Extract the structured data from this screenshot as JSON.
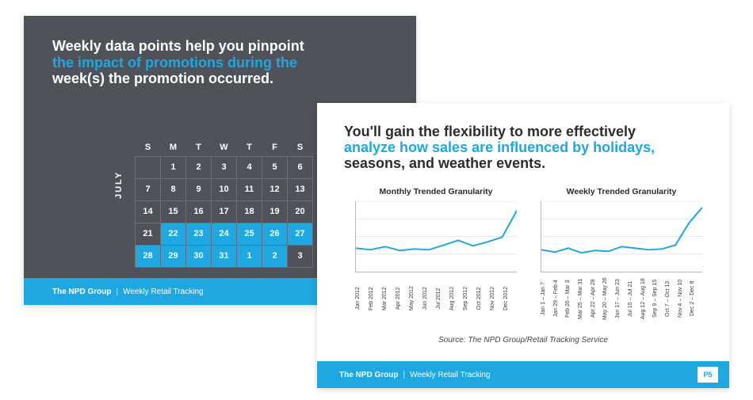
{
  "colors": {
    "slide1_bg": "#4f5258",
    "accent": "#1ea7e1",
    "white": "#ffffff",
    "text_dark": "#2b2c2e",
    "grid_border": "#6a6d72",
    "chart_grid": "#e6e6e6",
    "chart_axis": "#b8b8b8"
  },
  "slide1": {
    "head_line1": "Weekly data points help you pinpoint",
    "head_line2_accent": "the impact of promotions during the",
    "head_line3": "week(s) the promotion occurred.",
    "month_label": "JULY",
    "day_headers": [
      "S",
      "M",
      "T",
      "W",
      "T",
      "F",
      "S"
    ],
    "rows": [
      [
        {
          "n": "",
          "hl": false
        },
        {
          "n": "1",
          "hl": false
        },
        {
          "n": "2",
          "hl": false
        },
        {
          "n": "3",
          "hl": false
        },
        {
          "n": "4",
          "hl": false
        },
        {
          "n": "5",
          "hl": false
        },
        {
          "n": "6",
          "hl": false
        }
      ],
      [
        {
          "n": "7",
          "hl": false
        },
        {
          "n": "8",
          "hl": false
        },
        {
          "n": "9",
          "hl": false
        },
        {
          "n": "10",
          "hl": false
        },
        {
          "n": "11",
          "hl": false
        },
        {
          "n": "12",
          "hl": false
        },
        {
          "n": "13",
          "hl": false
        }
      ],
      [
        {
          "n": "14",
          "hl": false
        },
        {
          "n": "15",
          "hl": false
        },
        {
          "n": "16",
          "hl": false
        },
        {
          "n": "17",
          "hl": false
        },
        {
          "n": "18",
          "hl": false
        },
        {
          "n": "19",
          "hl": false
        },
        {
          "n": "20",
          "hl": false
        }
      ],
      [
        {
          "n": "21",
          "hl": false
        },
        {
          "n": "22",
          "hl": true
        },
        {
          "n": "23",
          "hl": true
        },
        {
          "n": "24",
          "hl": true
        },
        {
          "n": "25",
          "hl": true
        },
        {
          "n": "26",
          "hl": true
        },
        {
          "n": "27",
          "hl": true
        }
      ],
      [
        {
          "n": "28",
          "hl": true
        },
        {
          "n": "29",
          "hl": true
        },
        {
          "n": "30",
          "hl": true
        },
        {
          "n": "31",
          "hl": true
        },
        {
          "n": "1",
          "hl": true
        },
        {
          "n": "2",
          "hl": true
        },
        {
          "n": "3",
          "hl": false
        }
      ]
    ],
    "footer_brand": "The NPD Group",
    "footer_sep": "|",
    "footer_title": "Weekly Retail Tracking"
  },
  "slide2": {
    "head_line1": "You'll gain the flexibility to more effectively",
    "head_line2_accent": "analyze how sales are influenced by holidays,",
    "head_line3": "seasons, and weather events.",
    "chart1": {
      "type": "line",
      "title": "Monthly Trended Granularity",
      "x": [
        "Jan 2012",
        "Feb 2012",
        "Mar 2012",
        "Apr 2012",
        "May 2012",
        "Jun 2012",
        "Jul 2012",
        "Aug 2012",
        "Sep 2012",
        "Oct 2012",
        "Nov 2012",
        "Dec 2012"
      ],
      "y": [
        30,
        28,
        32,
        27,
        29,
        28,
        34,
        40,
        33,
        38,
        44,
        78
      ],
      "ylim": [
        0,
        90
      ],
      "line_color": "#1ea7e1",
      "line_width": 2,
      "grid_color": "#e6e6e6",
      "n_gridlines": 4
    },
    "chart2": {
      "type": "line",
      "title": "Weekly Trended Granularity",
      "x": [
        "Jan 1 – Jan 7",
        "Jan 29 – Feb 4",
        "Feb 26 – Mar 3",
        "Mar 25 – Mar 31",
        "Apr 22 – Apr 28",
        "May 20 – May 26",
        "Jun 17 – Jun 23",
        "Jul 15 – Jul 21",
        "Aug 12 – Aug 18",
        "Sep 9 – Sep 15",
        "Oct 7 – Oct 13",
        "Nov 4 – Nov 10",
        "Dec 2 – Dec 8"
      ],
      "y": [
        28,
        25,
        30,
        24,
        27,
        26,
        32,
        30,
        28,
        29,
        34,
        62,
        82
      ],
      "ylim": [
        0,
        90
      ],
      "line_color": "#1ea7e1",
      "line_width": 2,
      "grid_color": "#e6e6e6",
      "n_gridlines": 4
    },
    "source": "Source: The NPD Group/Retail Tracking Service",
    "footer_brand": "The NPD Group",
    "footer_sep": "|",
    "footer_title": "Weekly Retail Tracking",
    "page": "P5"
  }
}
